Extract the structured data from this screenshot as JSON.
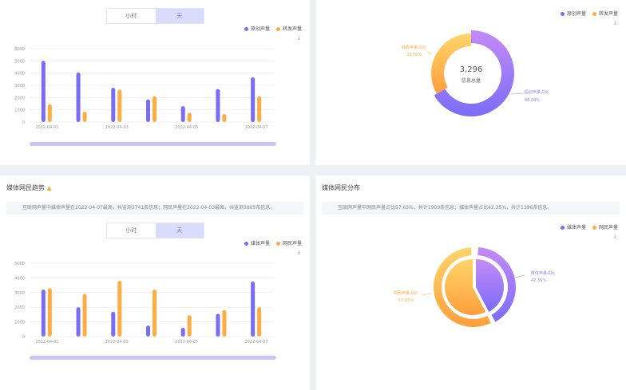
{
  "colors": {
    "media": "#7b6cf7",
    "netizen": "#ffad42",
    "accent": "#d9dcfd"
  },
  "top_left": {
    "toggle": [
      "小时",
      "天"
    ],
    "active": "天",
    "legend": [
      "原创声量",
      "转发声量"
    ],
    "download_icon": "download-icon",
    "chart_data": {
      "type": "bar",
      "categories": [
        "2022-04-01",
        "2022-04-02",
        "2022-04-03",
        "2022-04-04",
        "2022-04-05",
        "2022-04-06",
        "2022-04-07"
      ],
      "x_tick_labels": [
        "2022-04-01",
        "",
        "2022-04-03",
        "",
        "2022-04-05",
        "",
        "2022-04-07"
      ],
      "ylim": [
        0,
        6000
      ],
      "y_ticks": [
        "0",
        "1000",
        "2000",
        "3000",
        "4000",
        "5000",
        "6000"
      ],
      "series": [
        {
          "name": "原创声量",
          "values": [
            5000,
            4050,
            2800,
            1850,
            1300,
            2700,
            3650
          ]
        },
        {
          "name": "转发声量",
          "values": [
            1450,
            850,
            2650,
            2100,
            750,
            650,
            2100
          ]
        }
      ]
    }
  },
  "top_right": {
    "legend": [
      "原创声量",
      "转发声量"
    ],
    "center_value": "3,296",
    "center_label": "信息总量",
    "chart_data": {
      "type": "pie",
      "slices": [
        {
          "label": "原创声量占比",
          "value": 66.44,
          "pct": "66.44%"
        },
        {
          "label": "转发声量占比",
          "value": 33.56,
          "pct": "33.56%"
        }
      ]
    }
  },
  "bottom_left": {
    "title": "媒体网民趋势",
    "summary": "互联网声量中媒体声量在2022-04-07最高，共监测3741条信息；网民声量在2022-04-03最高，共监测3805条信息。",
    "toggle": [
      "小时",
      "天"
    ],
    "active": "天",
    "legend": [
      "媒体声量",
      "网民声量"
    ],
    "chart_data": {
      "type": "bar",
      "categories": [
        "2022-04-01",
        "2022-04-02",
        "2022-04-03",
        "2022-04-04",
        "2022-04-05",
        "2022-04-06",
        "2022-04-07"
      ],
      "x_tick_labels": [
        "2022-04-01",
        "",
        "2022-04-03",
        "",
        "2022-04-05",
        "",
        "2022-04-07"
      ],
      "ylim": [
        0,
        5000
      ],
      "y_ticks": [
        "0",
        "1000",
        "2000",
        "3000",
        "4000",
        "5000"
      ],
      "series": [
        {
          "name": "媒体声量",
          "values": [
            3200,
            2000,
            1700,
            750,
            600,
            1550,
            3750
          ]
        },
        {
          "name": "网民声量",
          "values": [
            3300,
            2900,
            3800,
            3200,
            1450,
            1800,
            2000
          ]
        }
      ]
    }
  },
  "bottom_right": {
    "title": "媒体网民分布",
    "summary": "互联网声量中网民声量占比57.65%，共计1900条信息；媒体声量占比42.35%，共计1396条信息。",
    "legend": [
      "媒体声量",
      "网民声量"
    ],
    "chart_data": {
      "type": "pie",
      "slices": [
        {
          "label": "媒体声量占比",
          "value": 42.35,
          "pct": "42.35%"
        },
        {
          "label": "网民声量占比",
          "value": 57.65,
          "pct": "57.65%"
        }
      ]
    }
  }
}
